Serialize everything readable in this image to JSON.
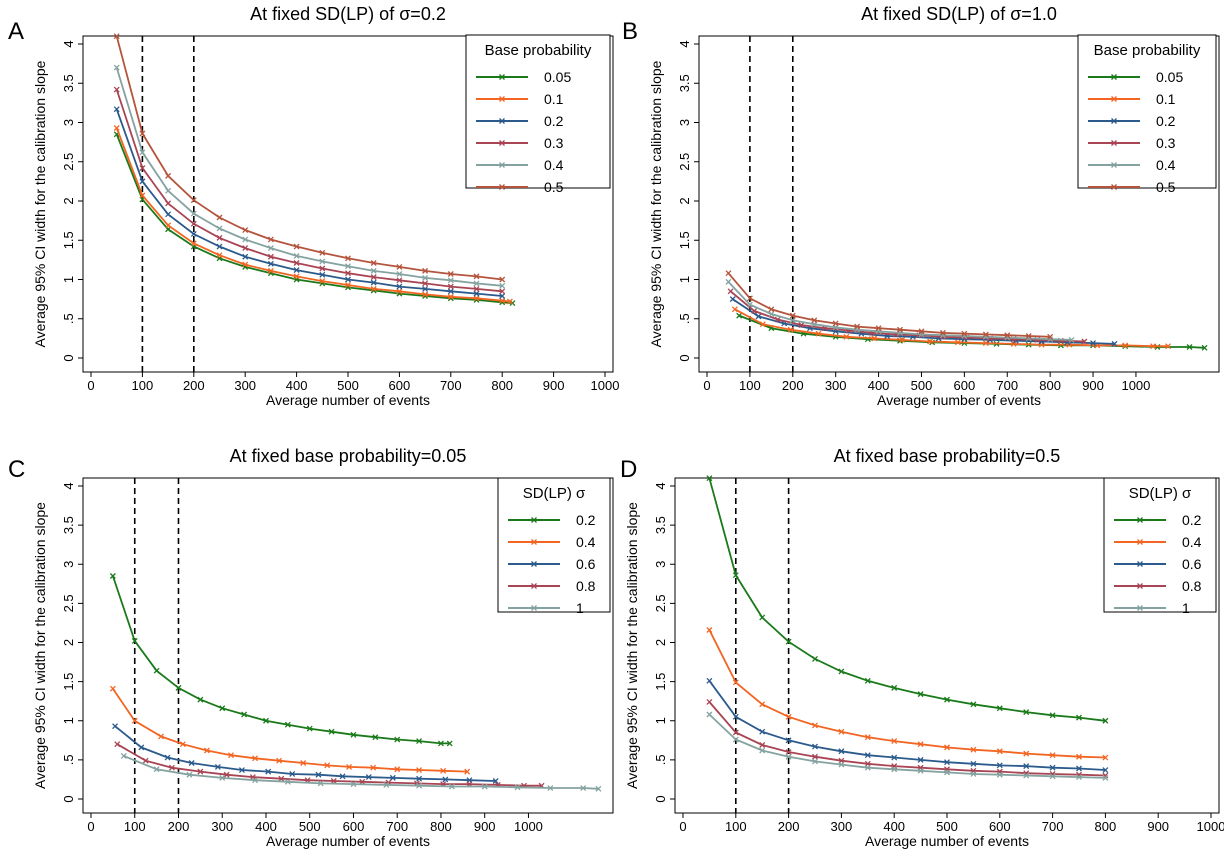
{
  "figure": {
    "panels": [
      "A",
      "B",
      "C",
      "D"
    ]
  },
  "chart_data": [
    {
      "panel_letter": "A",
      "type": "line",
      "title": "At fixed SD(LP) of σ=0.2",
      "xlabel": "Average number of events",
      "ylabel": "Average 95% CI width for the calibration slope",
      "xlim": [
        0,
        1000
      ],
      "ylim": [
        0,
        4
      ],
      "xticks": [
        "0",
        "100",
        "200",
        "300",
        "400",
        "500",
        "600",
        "700",
        "800",
        "900",
        "1000"
      ],
      "xtick_values": [
        0,
        100,
        200,
        300,
        400,
        500,
        600,
        700,
        800,
        900,
        1000
      ],
      "yticks": [
        "0",
        ".5",
        "1",
        "1.5",
        "2",
        "2.5",
        "3",
        "3.5",
        "4"
      ],
      "ytick_values": [
        0,
        0.5,
        1,
        1.5,
        2,
        2.5,
        3,
        3.5,
        4
      ],
      "vlines": [
        100,
        200
      ],
      "legend_title": "Base probability",
      "legend_position": "top-right",
      "series": [
        {
          "name": "0.05",
          "color": "#1a7a1a",
          "x": [
            50,
            100,
            150,
            200,
            250,
            300,
            350,
            400,
            450,
            500,
            550,
            600,
            650,
            700,
            750,
            800,
            820
          ],
          "y": [
            2.85,
            2.02,
            1.64,
            1.42,
            1.27,
            1.16,
            1.08,
            1.0,
            0.95,
            0.9,
            0.86,
            0.82,
            0.79,
            0.76,
            0.74,
            0.71,
            0.7
          ]
        },
        {
          "name": "0.1",
          "color": "#f26522",
          "x": [
            50,
            100,
            150,
            200,
            250,
            300,
            350,
            400,
            450,
            500,
            550,
            600,
            650,
            700,
            750,
            800,
            815
          ],
          "y": [
            2.93,
            2.07,
            1.69,
            1.46,
            1.31,
            1.19,
            1.11,
            1.04,
            0.98,
            0.93,
            0.88,
            0.85,
            0.81,
            0.78,
            0.76,
            0.73,
            0.72
          ]
        },
        {
          "name": "0.2",
          "color": "#2b5a8c",
          "x": [
            50,
            100,
            150,
            200,
            250,
            300,
            350,
            400,
            450,
            500,
            550,
            600,
            650,
            700,
            750,
            800
          ],
          "y": [
            3.17,
            2.25,
            1.83,
            1.58,
            1.42,
            1.29,
            1.2,
            1.12,
            1.06,
            1.0,
            0.96,
            0.91,
            0.88,
            0.85,
            0.82,
            0.79
          ]
        },
        {
          "name": "0.3",
          "color": "#a84453",
          "x": [
            50,
            100,
            150,
            200,
            250,
            300,
            350,
            400,
            450,
            500,
            550,
            600,
            650,
            700,
            750,
            800
          ],
          "y": [
            3.42,
            2.42,
            1.97,
            1.71,
            1.53,
            1.4,
            1.29,
            1.21,
            1.14,
            1.08,
            1.03,
            0.99,
            0.95,
            0.91,
            0.88,
            0.85
          ]
        },
        {
          "name": "0.4",
          "color": "#84a3a0",
          "x": [
            50,
            100,
            150,
            200,
            250,
            300,
            350,
            400,
            450,
            500,
            550,
            600,
            650,
            700,
            750,
            800
          ],
          "y": [
            3.7,
            2.62,
            2.13,
            1.84,
            1.65,
            1.51,
            1.4,
            1.3,
            1.23,
            1.17,
            1.11,
            1.07,
            1.02,
            0.99,
            0.95,
            0.92
          ]
        },
        {
          "name": "0.5",
          "color": "#b5543c",
          "x": [
            50,
            100,
            150,
            200,
            250,
            300,
            350,
            400,
            450,
            500,
            550,
            600,
            650,
            700,
            750,
            800
          ],
          "y": [
            4.1,
            2.86,
            2.32,
            2.01,
            1.79,
            1.63,
            1.51,
            1.42,
            1.34,
            1.27,
            1.21,
            1.16,
            1.11,
            1.07,
            1.04,
            1.0
          ]
        }
      ]
    },
    {
      "panel_letter": "B",
      "type": "line",
      "title": "At fixed SD(LP) of σ=1.0",
      "xlabel": "Average number of events",
      "ylabel": "Average 95% CI width for the calibration slope",
      "xlim": [
        0,
        1175
      ],
      "ylim": [
        0,
        4
      ],
      "xticks": [
        "0",
        "100",
        "200",
        "300",
        "400",
        "500",
        "600",
        "700",
        "800",
        "900",
        "1000"
      ],
      "xtick_values": [
        0,
        100,
        200,
        300,
        400,
        500,
        600,
        700,
        800,
        900,
        1000
      ],
      "yticks": [
        "0",
        ".5",
        "1",
        "1.5",
        "2",
        "2.5",
        "3",
        "3.5",
        "4"
      ],
      "ytick_values": [
        0,
        0.5,
        1,
        1.5,
        2,
        2.5,
        3,
        3.5,
        4
      ],
      "vlines": [
        100,
        200
      ],
      "legend_title": "Base probability",
      "legend_position": "top-right",
      "series": [
        {
          "name": "0.05",
          "color": "#1a7a1a",
          "x": [
            75,
            150,
            225,
            300,
            375,
            450,
            525,
            600,
            675,
            750,
            825,
            900,
            975,
            1050,
            1125,
            1160
          ],
          "y": [
            0.54,
            0.38,
            0.31,
            0.27,
            0.24,
            0.22,
            0.2,
            0.19,
            0.18,
            0.17,
            0.16,
            0.16,
            0.15,
            0.14,
            0.14,
            0.13
          ]
        },
        {
          "name": "0.1",
          "color": "#f26522",
          "x": [
            65,
            130,
            195,
            260,
            325,
            390,
            455,
            520,
            585,
            650,
            715,
            780,
            845,
            910,
            975,
            1040,
            1075
          ],
          "y": [
            0.62,
            0.43,
            0.36,
            0.31,
            0.27,
            0.25,
            0.23,
            0.21,
            0.2,
            0.19,
            0.18,
            0.17,
            0.17,
            0.16,
            0.16,
            0.15,
            0.15
          ]
        },
        {
          "name": "0.2",
          "color": "#2b5a8c",
          "x": [
            60,
            120,
            180,
            240,
            300,
            360,
            420,
            480,
            540,
            600,
            660,
            720,
            780,
            840,
            900,
            950
          ],
          "y": [
            0.75,
            0.53,
            0.44,
            0.38,
            0.34,
            0.31,
            0.28,
            0.27,
            0.25,
            0.24,
            0.23,
            0.22,
            0.21,
            0.2,
            0.19,
            0.18
          ]
        },
        {
          "name": "0.3",
          "color": "#a84453",
          "x": [
            55,
            110,
            165,
            220,
            275,
            330,
            385,
            440,
            495,
            550,
            605,
            660,
            715,
            770,
            825,
            880
          ],
          "y": [
            0.85,
            0.6,
            0.49,
            0.42,
            0.38,
            0.35,
            0.32,
            0.3,
            0.29,
            0.27,
            0.26,
            0.25,
            0.24,
            0.23,
            0.22,
            0.21
          ]
        },
        {
          "name": "0.4",
          "color": "#84a3a0",
          "x": [
            50,
            100,
            150,
            200,
            250,
            300,
            350,
            400,
            450,
            500,
            550,
            600,
            650,
            700,
            750,
            800,
            850
          ],
          "y": [
            0.97,
            0.68,
            0.56,
            0.48,
            0.43,
            0.39,
            0.36,
            0.34,
            0.32,
            0.3,
            0.29,
            0.28,
            0.27,
            0.26,
            0.25,
            0.24,
            0.23
          ]
        },
        {
          "name": "0.5",
          "color": "#b5543c",
          "x": [
            50,
            100,
            150,
            200,
            250,
            300,
            350,
            400,
            450,
            500,
            550,
            600,
            650,
            700,
            750,
            800
          ],
          "y": [
            1.08,
            0.76,
            0.62,
            0.54,
            0.48,
            0.44,
            0.4,
            0.38,
            0.36,
            0.34,
            0.32,
            0.31,
            0.3,
            0.29,
            0.28,
            0.27
          ]
        }
      ]
    },
    {
      "panel_letter": "C",
      "type": "line",
      "title": "At fixed base probability=0.05",
      "xlabel": "Average number of events",
      "ylabel": "Average 95% CI width for the calibration slope",
      "xlim": [
        0,
        1175
      ],
      "ylim": [
        0,
        4
      ],
      "xticks": [
        "0",
        "100",
        "200",
        "300",
        "400",
        "500",
        "600",
        "700",
        "800",
        "900",
        "1000"
      ],
      "xtick_values": [
        0,
        100,
        200,
        300,
        400,
        500,
        600,
        700,
        800,
        900,
        1000
      ],
      "yticks": [
        "0",
        ".5",
        "1",
        "1.5",
        "2",
        "2.5",
        "3",
        "3.5",
        "4"
      ],
      "ytick_values": [
        0,
        0.5,
        1,
        1.5,
        2,
        2.5,
        3,
        3.5,
        4
      ],
      "vlines": [
        100,
        200
      ],
      "legend_title": "SD(LP) σ",
      "legend_position": "top-right",
      "series": [
        {
          "name": "0.2",
          "color": "#1a7a1a",
          "x": [
            50,
            100,
            150,
            200,
            250,
            300,
            350,
            400,
            450,
            500,
            550,
            600,
            650,
            700,
            750,
            800,
            820
          ],
          "y": [
            2.85,
            2.02,
            1.64,
            1.42,
            1.27,
            1.16,
            1.08,
            1.0,
            0.95,
            0.9,
            0.86,
            0.82,
            0.79,
            0.76,
            0.74,
            0.71,
            0.71
          ]
        },
        {
          "name": "0.4",
          "color": "#f26522",
          "x": [
            50,
            100,
            160,
            210,
            265,
            320,
            375,
            430,
            485,
            540,
            590,
            645,
            700,
            750,
            805,
            860
          ],
          "y": [
            1.41,
            1.0,
            0.8,
            0.7,
            0.62,
            0.56,
            0.52,
            0.49,
            0.46,
            0.43,
            0.41,
            0.4,
            0.38,
            0.37,
            0.36,
            0.35
          ]
        },
        {
          "name": "0.6",
          "color": "#2b5a8c",
          "x": [
            55,
            115,
            175,
            230,
            290,
            345,
            405,
            460,
            520,
            575,
            635,
            690,
            750,
            810,
            865,
            925
          ],
          "y": [
            0.93,
            0.66,
            0.53,
            0.46,
            0.41,
            0.37,
            0.35,
            0.32,
            0.31,
            0.29,
            0.28,
            0.27,
            0.26,
            0.25,
            0.24,
            0.23
          ]
        },
        {
          "name": "0.8",
          "color": "#a84453",
          "x": [
            60,
            125,
            185,
            250,
            310,
            370,
            435,
            495,
            555,
            620,
            680,
            745,
            805,
            865,
            930,
            990,
            1030
          ],
          "y": [
            0.7,
            0.49,
            0.4,
            0.35,
            0.31,
            0.28,
            0.26,
            0.24,
            0.23,
            0.22,
            0.21,
            0.2,
            0.19,
            0.19,
            0.18,
            0.17,
            0.17
          ]
        },
        {
          "name": "1",
          "color": "#84a3a0",
          "x": [
            75,
            150,
            225,
            300,
            375,
            450,
            525,
            600,
            675,
            750,
            825,
            900,
            975,
            1050,
            1125,
            1160
          ],
          "y": [
            0.55,
            0.38,
            0.31,
            0.27,
            0.24,
            0.22,
            0.2,
            0.19,
            0.18,
            0.17,
            0.16,
            0.16,
            0.15,
            0.14,
            0.14,
            0.13
          ]
        }
      ]
    },
    {
      "panel_letter": "D",
      "type": "line",
      "title": "At fixed base probability=0.5",
      "xlabel": "Average number of events",
      "ylabel": "Average 95% CI width for the calibration slope",
      "xlim": [
        0,
        1000
      ],
      "ylim": [
        0,
        4
      ],
      "xticks": [
        "0",
        "100",
        "200",
        "300",
        "400",
        "500",
        "600",
        "700",
        "800",
        "900",
        "1000"
      ],
      "xtick_values": [
        0,
        100,
        200,
        300,
        400,
        500,
        600,
        700,
        800,
        900,
        1000
      ],
      "yticks": [
        "0",
        ".5",
        "1",
        "1.5",
        "2",
        "2.5",
        "3",
        "3.5",
        "4"
      ],
      "ytick_values": [
        0,
        0.5,
        1,
        1.5,
        2,
        2.5,
        3,
        3.5,
        4
      ],
      "vlines": [
        100,
        200
      ],
      "legend_title": "SD(LP) σ",
      "legend_position": "top-right",
      "series": [
        {
          "name": "0.2",
          "color": "#1a7a1a",
          "x": [
            50,
            100,
            150,
            200,
            250,
            300,
            350,
            400,
            450,
            500,
            550,
            600,
            650,
            700,
            750,
            800
          ],
          "y": [
            4.1,
            2.86,
            2.32,
            2.01,
            1.79,
            1.63,
            1.51,
            1.42,
            1.34,
            1.27,
            1.21,
            1.16,
            1.11,
            1.07,
            1.04,
            1.0
          ]
        },
        {
          "name": "0.4",
          "color": "#f26522",
          "x": [
            50,
            100,
            150,
            200,
            250,
            300,
            350,
            400,
            450,
            500,
            550,
            600,
            650,
            700,
            750,
            800
          ],
          "y": [
            2.16,
            1.49,
            1.21,
            1.05,
            0.94,
            0.86,
            0.79,
            0.74,
            0.7,
            0.66,
            0.63,
            0.61,
            0.58,
            0.56,
            0.54,
            0.53
          ]
        },
        {
          "name": "0.6",
          "color": "#2b5a8c",
          "x": [
            50,
            100,
            150,
            200,
            250,
            300,
            350,
            400,
            450,
            500,
            550,
            600,
            650,
            700,
            750,
            800
          ],
          "y": [
            1.51,
            1.05,
            0.86,
            0.75,
            0.67,
            0.61,
            0.56,
            0.53,
            0.5,
            0.47,
            0.45,
            0.43,
            0.42,
            0.4,
            0.39,
            0.37
          ]
        },
        {
          "name": "0.8",
          "color": "#a84453",
          "x": [
            50,
            100,
            150,
            200,
            250,
            300,
            350,
            400,
            450,
            500,
            550,
            600,
            650,
            700,
            750,
            800
          ],
          "y": [
            1.24,
            0.85,
            0.69,
            0.6,
            0.54,
            0.49,
            0.45,
            0.42,
            0.4,
            0.38,
            0.36,
            0.35,
            0.33,
            0.32,
            0.31,
            0.3
          ]
        },
        {
          "name": "1",
          "color": "#84a3a0",
          "x": [
            50,
            100,
            150,
            200,
            250,
            300,
            350,
            400,
            450,
            500,
            550,
            600,
            650,
            700,
            750,
            800
          ],
          "y": [
            1.08,
            0.76,
            0.62,
            0.54,
            0.48,
            0.44,
            0.4,
            0.38,
            0.36,
            0.34,
            0.32,
            0.31,
            0.3,
            0.29,
            0.28,
            0.27
          ]
        }
      ]
    }
  ]
}
